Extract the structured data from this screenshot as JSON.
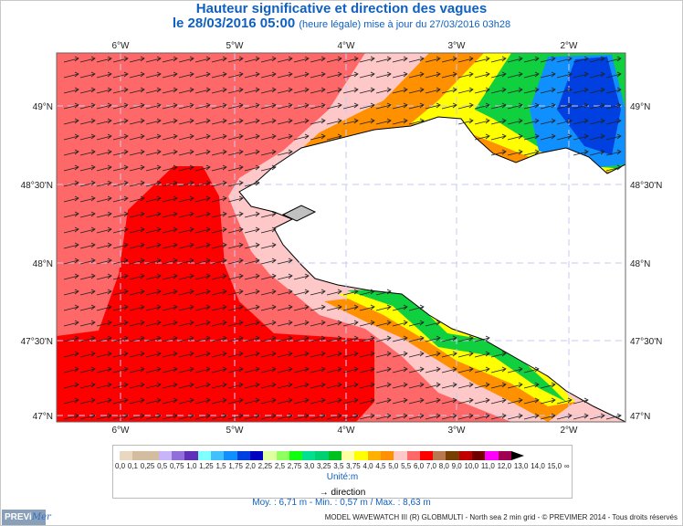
{
  "title": "Hauteur significative et direction des vagues",
  "subtitle": {
    "date": "le 28/03/2016 05:00",
    "note": "(heure légale) mise à jour du 27/03/2016 03h28"
  },
  "chart_data": {
    "type": "heatmap",
    "title": "Hauteur significative et direction des vagues",
    "x_ticks": [
      "6°W",
      "5°W",
      "4°W",
      "3°W",
      "2°W"
    ],
    "y_ticks": [
      "49°N",
      "48°30'N",
      "48°N",
      "47°30'N",
      "47°N"
    ],
    "xlim": [
      "6°35'W",
      "1°30'W"
    ],
    "ylim": [
      "47°N",
      "49°20'N"
    ],
    "grid": true,
    "dominant_direction": "towards east-northeast",
    "colorbar": {
      "labels": [
        "0,0",
        "0,1",
        "0,25",
        "0,5",
        "0,75",
        "1,0",
        "1,25",
        "1,5",
        "1,75",
        "2,0",
        "2,25",
        "2,5",
        "2,75",
        "3,0",
        "3,25",
        "3,5",
        "3,75",
        "4,0",
        "4,5",
        "5,0",
        "5,5",
        "6,0",
        "7,0",
        "8,0",
        "9,0",
        "10,0",
        "11,0",
        "12,0",
        "13,0",
        "14,0",
        "15,0",
        "∞"
      ],
      "colors": [
        "#e8d8c0",
        "#d4bca0",
        "#d4bca0",
        "#c8b4f8",
        "#9070d8",
        "#6030b8",
        "#80ffff",
        "#40c0ff",
        "#1090ff",
        "#0040e0",
        "#0000c0",
        "#e0ffa0",
        "#90ff60",
        "#10ff10",
        "#00e090",
        "#00d070",
        "#00c020",
        "#ffffa0",
        "#ffff00",
        "#ffb000",
        "#ff9000",
        "#ffc8c8",
        "#ff6868",
        "#ff0000",
        "#b87850",
        "#784000",
        "#c00000",
        "#700000",
        "#ff00ff",
        "#a00050",
        "#000000"
      ],
      "unit": "Unité:m"
    }
  },
  "legend": {
    "direction": "→ direction"
  },
  "stats": "Moy. : 6,71 m   -   Min. : 0,57 m / Max. : 8,63 m",
  "footer": "MODEL WAVEWATCH III (R) GLOBMULTI - North sea 2 min grid - © PREVIMER 2014 - Tous droits réservés",
  "logo": {
    "a": "PREVi",
    "b": "Mer"
  }
}
